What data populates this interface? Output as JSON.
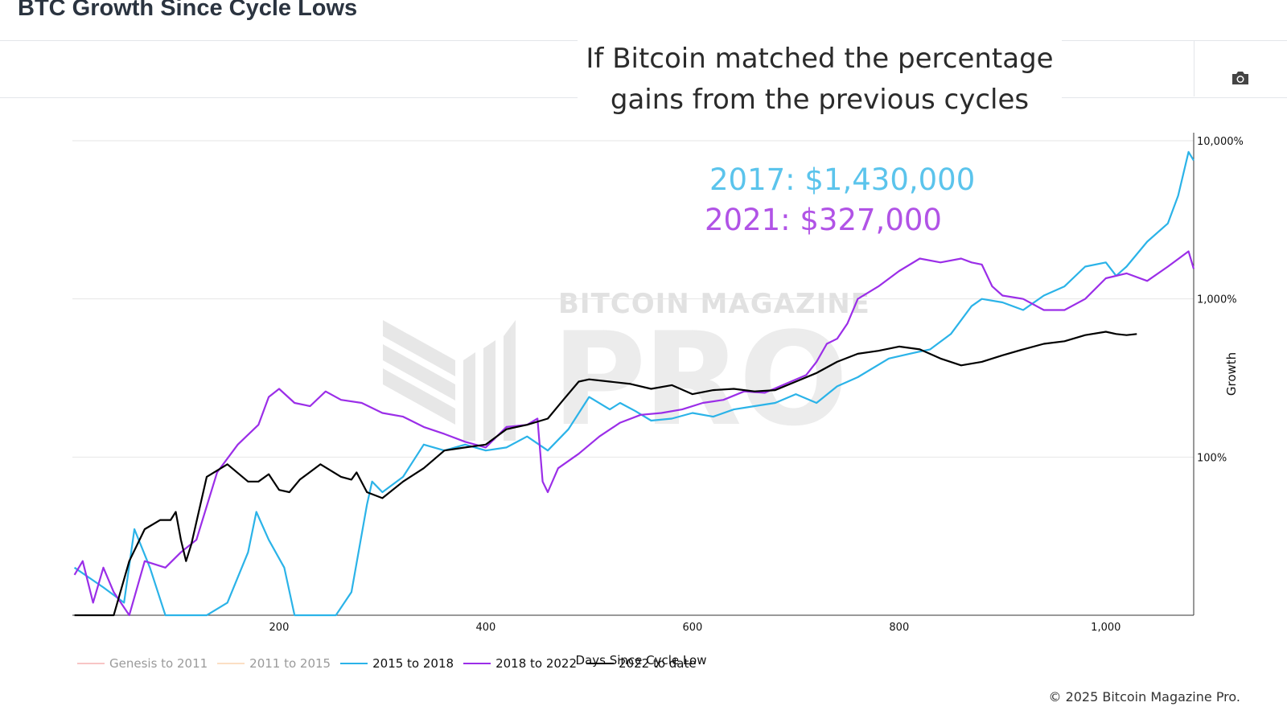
{
  "header": {
    "title": "BTC Growth Since Cycle Lows"
  },
  "annotation": {
    "line1": "If Bitcoin matched the percentage",
    "line2": "gains from the previous cycles",
    "price_2017": "2017: $1,430,000",
    "price_2021": "2021: $327,000"
  },
  "toolbar": {
    "camera_icon": "camera-icon"
  },
  "watermark": {
    "brand": "BITCOIN MAGAZINE",
    "product": "PRO"
  },
  "footer": {
    "copyright": "© 2025 Bitcoin Magazine Pro."
  },
  "colors": {
    "s2015": "#2bb3e8",
    "s2018": "#9b2ee8",
    "s2022": "#000000",
    "genesis": "#f28b8b",
    "s2011": "#f7c08a",
    "price2017": "#5bc4ec",
    "price2021": "#b153e6"
  },
  "chart_data": {
    "type": "line",
    "title": "",
    "xlabel": "Days Since Cycle Low",
    "ylabel": "Growth",
    "xlim": [
      0,
      1085
    ],
    "ylim": [
      10,
      10000
    ],
    "yscale": "log",
    "x_ticks": [
      200,
      400,
      600,
      800,
      1000
    ],
    "x_tick_labels": [
      "200",
      "400",
      "600",
      "800",
      "1,000"
    ],
    "y_ticks": [
      100,
      1000,
      10000
    ],
    "y_tick_labels": [
      "100%",
      "1,000%",
      "10,000%"
    ],
    "y_axis_side": "right",
    "grid": true,
    "legend_position": "bottom-left",
    "legend": [
      {
        "name": "Genesis to 2011",
        "visible": false
      },
      {
        "name": "2011 to 2015",
        "visible": false
      },
      {
        "name": "2015 to 2018",
        "visible": true
      },
      {
        "name": "2018 to 2022",
        "visible": true
      },
      {
        "name": "2022 to date",
        "visible": true
      }
    ],
    "series": [
      {
        "name": "2015 to 2018",
        "x": [
          2,
          30,
          50,
          60,
          75,
          90,
          105,
          130,
          150,
          170,
          178,
          190,
          205,
          215,
          230,
          245,
          255,
          270,
          285,
          290,
          300,
          320,
          340,
          360,
          380,
          400,
          420,
          440,
          460,
          480,
          500,
          520,
          530,
          545,
          560,
          580,
          600,
          620,
          640,
          660,
          680,
          700,
          720,
          740,
          760,
          790,
          810,
          830,
          850,
          870,
          880,
          900,
          920,
          940,
          960,
          980,
          1000,
          1010,
          1020,
          1040,
          1060,
          1070,
          1080,
          1085
        ],
        "y": [
          20,
          15,
          12,
          35,
          20,
          10,
          10,
          10,
          12,
          25,
          45,
          30,
          20,
          10,
          10,
          10,
          10,
          14,
          50,
          70,
          60,
          75,
          120,
          110,
          120,
          110,
          115,
          135,
          110,
          150,
          240,
          200,
          220,
          195,
          170,
          175,
          190,
          180,
          200,
          210,
          220,
          250,
          220,
          280,
          320,
          420,
          450,
          480,
          600,
          900,
          1000,
          950,
          850,
          1050,
          1200,
          1600,
          1700,
          1400,
          1600,
          2300,
          3000,
          4500,
          8500,
          7500
        ]
      },
      {
        "name": "2018 to 2022",
        "x": [
          2,
          10,
          20,
          30,
          40,
          55,
          70,
          90,
          105,
          120,
          140,
          160,
          180,
          190,
          200,
          215,
          230,
          245,
          260,
          280,
          300,
          320,
          340,
          360,
          380,
          400,
          420,
          440,
          450,
          455,
          460,
          470,
          490,
          510,
          530,
          550,
          570,
          590,
          610,
          630,
          650,
          670,
          690,
          710,
          720,
          730,
          740,
          750,
          760,
          780,
          800,
          820,
          840,
          860,
          870,
          880,
          890,
          900,
          920,
          940,
          960,
          980,
          1000,
          1020,
          1040,
          1060,
          1080,
          1085
        ],
        "y": [
          18,
          22,
          12,
          20,
          14,
          10,
          22,
          20,
          25,
          30,
          80,
          120,
          160,
          240,
          270,
          220,
          210,
          260,
          230,
          220,
          190,
          180,
          155,
          140,
          125,
          115,
          155,
          160,
          175,
          70,
          60,
          85,
          105,
          135,
          165,
          185,
          190,
          200,
          220,
          230,
          260,
          255,
          290,
          330,
          400,
          520,
          560,
          700,
          1000,
          1200,
          1500,
          1800,
          1700,
          1800,
          1700,
          1650,
          1200,
          1050,
          1000,
          850,
          850,
          1000,
          1350,
          1450,
          1300,
          1600,
          2000,
          1550
        ]
      },
      {
        "name": "2022 to date",
        "x": [
          2,
          10,
          20,
          40,
          55,
          70,
          85,
          95,
          100,
          105,
          110,
          115,
          130,
          150,
          170,
          180,
          190,
          200,
          210,
          220,
          240,
          260,
          270,
          275,
          285,
          300,
          320,
          340,
          360,
          380,
          400,
          420,
          440,
          460,
          475,
          490,
          500,
          520,
          540,
          560,
          580,
          600,
          620,
          640,
          660,
          680,
          700,
          720,
          740,
          760,
          780,
          800,
          820,
          840,
          860,
          880,
          900,
          920,
          940,
          960,
          980,
          1000,
          1010,
          1020,
          1030
        ],
        "y": [
          10,
          10,
          10,
          10,
          22,
          35,
          40,
          40,
          45,
          30,
          22,
          28,
          75,
          90,
          70,
          70,
          78,
          62,
          60,
          72,
          90,
          75,
          72,
          80,
          60,
          55,
          70,
          85,
          110,
          115,
          120,
          150,
          160,
          175,
          230,
          300,
          310,
          300,
          290,
          270,
          285,
          250,
          265,
          270,
          260,
          265,
          300,
          340,
          400,
          450,
          470,
          500,
          480,
          420,
          380,
          400,
          440,
          480,
          520,
          540,
          590,
          620,
          600,
          590,
          600
        ]
      }
    ]
  }
}
